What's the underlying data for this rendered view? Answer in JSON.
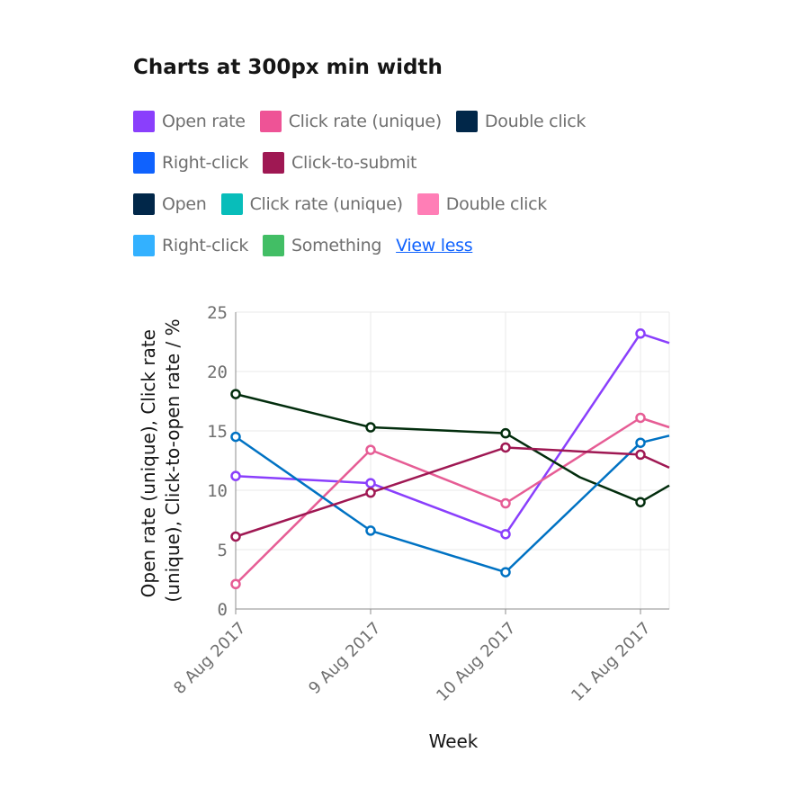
{
  "title": "Charts at 300px min width",
  "legend": {
    "rows": [
      [
        {
          "label": "Open rate",
          "color": "#8a3ffc"
        },
        {
          "label": "Click rate (unique)",
          "color": "#ee5396"
        },
        {
          "label": "Double click",
          "color": "#012749"
        }
      ],
      [
        {
          "label": "Right-click",
          "color": "#0f62fe"
        },
        {
          "label": "Click-to-submit",
          "color": "#9f1853"
        }
      ],
      [
        {
          "label": "Open",
          "color": "#012749"
        },
        {
          "label": "Click rate (unique)",
          "color": "#08bdba"
        },
        {
          "label": "Double click",
          "color": "#ff7eb6"
        }
      ],
      [
        {
          "label": "Right-click",
          "color": "#33b1ff"
        },
        {
          "label": "Something",
          "color": "#42be65"
        }
      ]
    ],
    "view_less": "View less"
  },
  "chart_data": {
    "type": "line",
    "xlabel": "Week",
    "ylabel_lines": [
      "Open rate (unique), Click rate",
      "(unique), Click-to-open rate / %"
    ],
    "ylim": [
      0,
      25
    ],
    "yticks": [
      "0",
      "5",
      "10",
      "15",
      "20",
      "25"
    ],
    "x": [
      "8 Aug 2017",
      "9 Aug 2017",
      "10 Aug 2017",
      "11 Aug 2017"
    ],
    "grid": true,
    "series": [
      {
        "name": "Open rate",
        "color": "#8a3ffc",
        "values": [
          11.2,
          10.6,
          6.3,
          23.2
        ],
        "tail": 22.4
      },
      {
        "name": "Click rate (unique)",
        "color": "#e65d95",
        "values": [
          2.1,
          13.4,
          8.9,
          16.1
        ],
        "tail": 15.3
      },
      {
        "name": "Double click",
        "color": "#022d0d",
        "values": [
          18.1,
          15.3,
          14.8,
          9.0
        ],
        "tail": 10.4,
        "mid": [
          {
            "x": 2.55,
            "y": 11.1
          }
        ]
      },
      {
        "name": "Right-click",
        "color": "#0072c3",
        "values": [
          14.5,
          6.6,
          3.1,
          14.0
        ],
        "tail": 14.6
      },
      {
        "name": "Click-to-submit",
        "color": "#9f1853",
        "values": [
          6.1,
          9.8,
          13.6,
          13.0
        ],
        "tail": 11.9
      }
    ]
  }
}
